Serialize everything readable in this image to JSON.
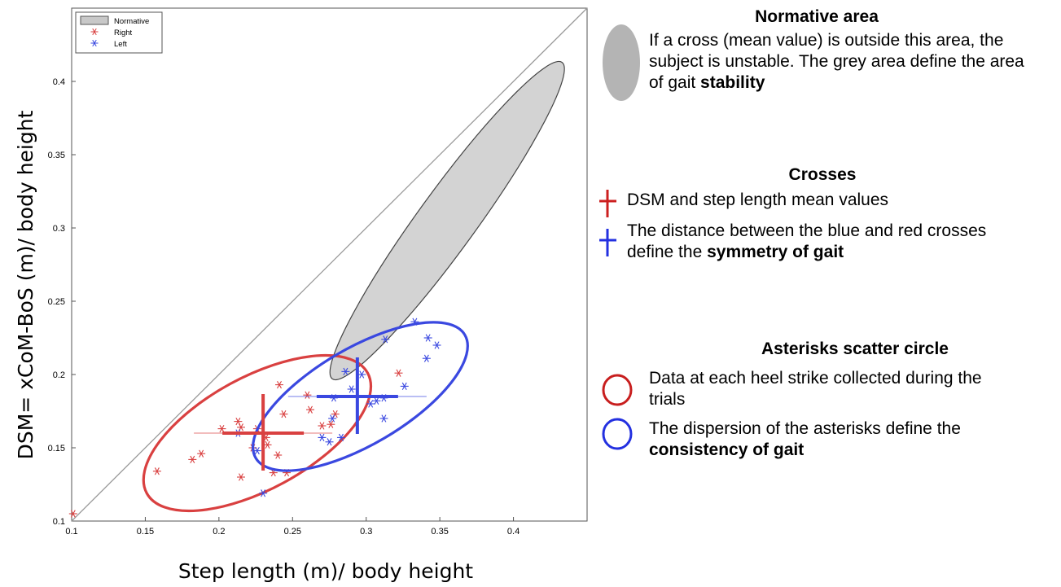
{
  "chart_data": {
    "type": "scatter",
    "xlabel": "Step length (m)/ body height",
    "ylabel": "DSM= xCoM-BoS (m)/ body height",
    "xlim": [
      0.1,
      0.45
    ],
    "ylim": [
      0.1,
      0.45
    ],
    "x_ticks": [
      "0.1",
      "0.15",
      "0.2",
      "0.25",
      "0.3",
      "0.35",
      "0.4"
    ],
    "y_ticks": [
      "0.1",
      "0.15",
      "0.2",
      "0.25",
      "0.3",
      "0.35",
      "0.4"
    ],
    "legend": {
      "placement": "top-left",
      "entries": [
        "Normative",
        "Right",
        "Left"
      ]
    },
    "identity_line": {
      "from": [
        0.1,
        0.1
      ],
      "to": [
        0.45,
        0.45
      ]
    },
    "normative_ellipse": {
      "center": [
        0.355,
        0.305
      ],
      "p1": [
        0.433,
        0.413
      ],
      "p2": [
        0.277,
        0.197
      ],
      "minor_end": [
        0.336,
        0.31
      ]
    },
    "series": [
      {
        "name": "Right",
        "color": "#d94040",
        "points": [
          [
            0.101,
            0.105
          ],
          [
            0.158,
            0.134
          ],
          [
            0.182,
            0.142
          ],
          [
            0.188,
            0.146
          ],
          [
            0.202,
            0.163
          ],
          [
            0.213,
            0.168
          ],
          [
            0.215,
            0.164
          ],
          [
            0.215,
            0.13
          ],
          [
            0.223,
            0.15
          ],
          [
            0.226,
            0.163
          ],
          [
            0.232,
            0.157
          ],
          [
            0.233,
            0.152
          ],
          [
            0.237,
            0.133
          ],
          [
            0.24,
            0.145
          ],
          [
            0.241,
            0.193
          ],
          [
            0.244,
            0.173
          ],
          [
            0.246,
            0.133
          ],
          [
            0.26,
            0.186
          ],
          [
            0.262,
            0.176
          ],
          [
            0.27,
            0.165
          ],
          [
            0.276,
            0.166
          ],
          [
            0.279,
            0.173
          ],
          [
            0.322,
            0.201
          ]
        ],
        "mean": [
          0.23,
          0.16
        ],
        "ellipse": {
          "center": [
            0.226,
            0.16
          ],
          "p1": [
            0.301,
            0.201
          ],
          "p2": [
            0.151,
            0.119
          ],
          "minor_end": [
            0.205,
            0.192
          ]
        }
      },
      {
        "name": "Left",
        "color": "#3a48e0",
        "points": [
          [
            0.213,
            0.16
          ],
          [
            0.226,
            0.148
          ],
          [
            0.23,
            0.119
          ],
          [
            0.27,
            0.157
          ],
          [
            0.275,
            0.154
          ],
          [
            0.277,
            0.17
          ],
          [
            0.278,
            0.184
          ],
          [
            0.283,
            0.157
          ],
          [
            0.286,
            0.202
          ],
          [
            0.29,
            0.19
          ],
          [
            0.297,
            0.2
          ],
          [
            0.303,
            0.18
          ],
          [
            0.307,
            0.182
          ],
          [
            0.312,
            0.17
          ],
          [
            0.312,
            0.184
          ],
          [
            0.313,
            0.224
          ],
          [
            0.326,
            0.192
          ],
          [
            0.333,
            0.236
          ],
          [
            0.341,
            0.211
          ],
          [
            0.342,
            0.225
          ],
          [
            0.348,
            0.22
          ]
        ],
        "mean": [
          0.294,
          0.185
        ],
        "ellipse": {
          "center": [
            0.296,
            0.185
          ],
          "p1": [
            0.367,
            0.227
          ],
          "p2": [
            0.225,
            0.143
          ],
          "minor_end": [
            0.279,
            0.213
          ]
        }
      }
    ]
  },
  "annotations": {
    "normative": {
      "title": "Normative area",
      "text": "If a cross (mean value) is outside this area, the subject is unstable. The grey area define the area of gait ",
      "bold": "stability",
      "color": "#b4b4b4"
    },
    "crosses": {
      "title": "Crosses",
      "line1": "DSM and step length mean values",
      "line2": "The distance between the blue and red crosses define the ",
      "line2_bold": "symmetry of gait",
      "red": "#cc1f1f",
      "blue": "#2330e0"
    },
    "asterisks": {
      "title": "Asterisks scatter circle",
      "line1": "Data at each heel strike collected during the trials",
      "line2": "The dispersion of the asterisks define the ",
      "line2_bold": "consistency of gait",
      "red": "#c81e1e",
      "blue": "#2330e0"
    }
  }
}
